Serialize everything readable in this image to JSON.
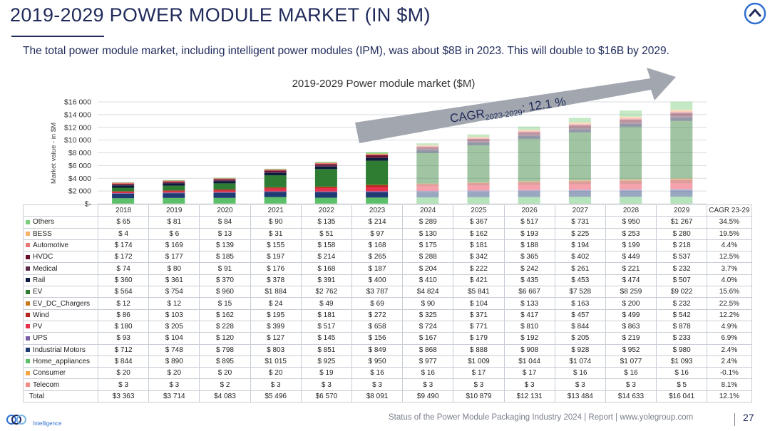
{
  "header": {
    "title": "2019-2029 POWER MODULE MARKET (IN $M)",
    "subtitle": "The total power module market, including intelligent power modules (IPM), was about $8B in 2023. This will double to $16B by 2029."
  },
  "annotation": {
    "cagr_main": "CAGR",
    "cagr_sub": "2023-2029",
    "cagr_value": ": 12.1 %"
  },
  "chart_data": {
    "type": "bar",
    "stacked": true,
    "title": "2019-2029 Power  module market ($M)",
    "ylabel": "Market value - in $M",
    "ylim": [
      0,
      16000
    ],
    "yticks": [
      "$-",
      "$2 000",
      "$4 000",
      "$6 000",
      "$8 000",
      "$10 000",
      "$12 000",
      "$14 000",
      "$16 000"
    ],
    "categories": [
      "2018",
      "2019",
      "2020",
      "2021",
      "2022",
      "2023",
      "2024",
      "2025",
      "2026",
      "2027",
      "2028",
      "2029"
    ],
    "forecast_from": "2024",
    "cagr_header": "CAGR 23-29",
    "series": [
      {
        "name": "Telecom",
        "color": "#f08c84",
        "values": [
          3,
          3,
          2,
          3,
          3,
          3,
          3,
          3,
          3,
          3,
          3,
          5
        ],
        "labels": [
          "$ 3",
          "$ 3",
          "$ 2",
          "$ 3",
          "$ 3",
          "$ 3",
          "$ 3",
          "$ 3",
          "$ 3",
          "$ 3",
          "$ 3",
          "$ 5"
        ],
        "cagr": "8.1%"
      },
      {
        "name": "Consumer",
        "color": "#f4a742",
        "values": [
          20,
          20,
          20,
          20,
          19,
          16,
          16,
          17,
          17,
          16,
          16,
          16
        ],
        "labels": [
          "$ 20",
          "$ 20",
          "$ 20",
          "$ 20",
          "$ 19",
          "$ 16",
          "$ 16",
          "$ 17",
          "$ 17",
          "$ 16",
          "$ 16",
          "$ 16"
        ],
        "cagr": "-0.1%"
      },
      {
        "name": "Home_appliances",
        "color": "#5cc06a",
        "values": [
          844,
          890,
          895,
          1015,
          925,
          950,
          977,
          1009,
          1044,
          1074,
          1077,
          1093
        ],
        "labels": [
          "$ 844",
          "$ 890",
          "$ 895",
          "$1 015",
          "$ 925",
          "$ 950",
          "$ 977",
          "$1 009",
          "$1 044",
          "$1 074",
          "$1 077",
          "$1 093"
        ],
        "cagr": "2.4%"
      },
      {
        "name": "Industrial Motors",
        "color": "#1f3b73",
        "values": [
          712,
          748,
          798,
          803,
          851,
          849,
          868,
          888,
          908,
          928,
          952,
          980
        ],
        "labels": [
          "$ 712",
          "$ 748",
          "$ 798",
          "$ 803",
          "$ 851",
          "$ 849",
          "$ 868",
          "$ 888",
          "$ 908",
          "$ 928",
          "$ 952",
          "$ 980"
        ],
        "cagr": "2.4%"
      },
      {
        "name": "UPS",
        "color": "#7b5ea7",
        "values": [
          93,
          104,
          120,
          127,
          145,
          156,
          167,
          179,
          192,
          205,
          219,
          233
        ],
        "labels": [
          "$ 93",
          "$ 104",
          "$ 120",
          "$ 127",
          "$ 145",
          "$ 156",
          "$ 167",
          "$ 179",
          "$ 192",
          "$ 205",
          "$ 219",
          "$ 233"
        ],
        "cagr": "6.9%"
      },
      {
        "name": "PV",
        "color": "#e8314a",
        "values": [
          180,
          205,
          228,
          399,
          517,
          658,
          724,
          771,
          810,
          844,
          863,
          878
        ],
        "labels": [
          "$ 180",
          "$ 205",
          "$ 228",
          "$ 399",
          "$ 517",
          "$ 658",
          "$ 724",
          "$ 771",
          "$ 810",
          "$ 844",
          "$ 863",
          "$ 878"
        ],
        "cagr": "4.9%"
      },
      {
        "name": "Wind",
        "color": "#b3261e",
        "values": [
          86,
          103,
          162,
          195,
          181,
          272,
          325,
          371,
          417,
          457,
          499,
          542
        ],
        "labels": [
          "$ 86",
          "$ 103",
          "$ 162",
          "$ 195",
          "$ 181",
          "$ 272",
          "$ 325",
          "$ 371",
          "$ 417",
          "$ 457",
          "$ 499",
          "$ 542"
        ],
        "cagr": "12.2%"
      },
      {
        "name": "EV_DC_Chargers",
        "color": "#c97a1c",
        "values": [
          12,
          12,
          15,
          24,
          49,
          69,
          90,
          104,
          133,
          163,
          200,
          232
        ],
        "labels": [
          "$ 12",
          "$ 12",
          "$ 15",
          "$ 24",
          "$ 49",
          "$ 69",
          "$ 90",
          "$ 104",
          "$ 133",
          "$ 163",
          "$ 200",
          "$ 232"
        ],
        "cagr": "22.5%"
      },
      {
        "name": "EV",
        "color": "#2e7d32",
        "values": [
          564,
          754,
          960,
          1884,
          2762,
          3787,
          4824,
          5841,
          6667,
          7528,
          8259,
          9022
        ],
        "labels": [
          "$ 564",
          "$ 754",
          "$ 960",
          "$1 884",
          "$2 762",
          "$3 787",
          "$4 824",
          "$5 841",
          "$6 667",
          "$7 528",
          "$8 259",
          "$9 022"
        ],
        "cagr": "15.6%"
      },
      {
        "name": "Rail",
        "color": "#0d1b3e",
        "values": [
          360,
          361,
          370,
          378,
          391,
          400,
          410,
          421,
          435,
          453,
          474,
          507
        ],
        "labels": [
          "$ 360",
          "$ 361",
          "$ 370",
          "$ 378",
          "$ 391",
          "$ 400",
          "$ 410",
          "$ 421",
          "$ 435",
          "$ 453",
          "$ 474",
          "$ 507"
        ],
        "cagr": "4.0%"
      },
      {
        "name": "Medical",
        "color": "#5a2a4a",
        "values": [
          74,
          80,
          91,
          176,
          168,
          187,
          204,
          222,
          242,
          261,
          221,
          232
        ],
        "labels": [
          "$ 74",
          "$ 80",
          "$ 91",
          "$ 176",
          "$ 168",
          "$ 187",
          "$ 204",
          "$ 222",
          "$ 242",
          "$ 261",
          "$ 221",
          "$ 232"
        ],
        "cagr": "3.7%"
      },
      {
        "name": "HVDC",
        "color": "#6b0f2a",
        "values": [
          172,
          177,
          185,
          197,
          214,
          265,
          288,
          342,
          365,
          402,
          449,
          537
        ],
        "labels": [
          "$ 172",
          "$ 177",
          "$ 185",
          "$ 197",
          "$ 214",
          "$ 265",
          "$ 288",
          "$ 342",
          "$ 365",
          "$ 402",
          "$ 449",
          "$ 537"
        ],
        "cagr": "12.5%"
      },
      {
        "name": "Automotive",
        "color": "#e87878",
        "values": [
          174,
          169,
          139,
          155,
          158,
          168,
          175,
          181,
          188,
          194,
          199,
          218
        ],
        "labels": [
          "$ 174",
          "$ 169",
          "$ 139",
          "$ 155",
          "$ 158",
          "$ 168",
          "$ 175",
          "$ 181",
          "$ 188",
          "$ 194",
          "$ 199",
          "$ 218"
        ],
        "cagr": "4.4%"
      },
      {
        "name": "BESS",
        "color": "#f6b26b",
        "values": [
          4,
          6,
          13,
          31,
          51,
          97,
          130,
          162,
          193,
          225,
          253,
          280
        ],
        "labels": [
          "$ 4",
          "$ 6",
          "$ 13",
          "$ 31",
          "$ 51",
          "$ 97",
          "$ 130",
          "$ 162",
          "$ 193",
          "$ 225",
          "$ 253",
          "$ 280"
        ],
        "cagr": "19.5%"
      },
      {
        "name": "Others",
        "color": "#7ccf7c",
        "values": [
          65,
          81,
          84,
          90,
          135,
          214,
          289,
          367,
          517,
          731,
          950,
          1267
        ],
        "labels": [
          "$ 65",
          "$ 81",
          "$ 84",
          "$ 90",
          "$ 135",
          "$ 214",
          "$ 289",
          "$ 367",
          "$ 517",
          "$ 731",
          "$ 950",
          "$1 267"
        ],
        "cagr": "34.5%"
      }
    ],
    "table_order": [
      "Others",
      "BESS",
      "Automotive",
      "HVDC",
      "Medical",
      "Rail",
      "EV",
      "EV_DC_Chargers",
      "Wind",
      "PV",
      "UPS",
      "Industrial Motors",
      "Home_appliances",
      "Consumer",
      "Telecom"
    ],
    "total": {
      "name": "Total",
      "values": [
        3363,
        3714,
        4083,
        5496,
        6570,
        8091,
        9490,
        10879,
        12131,
        13484,
        14633,
        16041
      ],
      "labels": [
        "$3 363",
        "$3 714",
        "$4 083",
        "$5 496",
        "$6 570",
        "$8 091",
        "$9 490",
        "$10 879",
        "$12 131",
        "$13 484",
        "$14 633",
        "$16 041"
      ],
      "cagr": "12.1%"
    }
  },
  "footer": {
    "source": "Status of the Power Module Packaging Industry 2024 | Report | www.yolegroup.com",
    "page": "27",
    "brand_sub": "Intelligence"
  },
  "colors": {
    "navy": "#1f2a5a",
    "accent": "#2f6fd0",
    "arrow": "#9aa0a8"
  },
  "icons": {
    "nav": "chevron-up-icon",
    "brand": "yole-logo-icon"
  }
}
